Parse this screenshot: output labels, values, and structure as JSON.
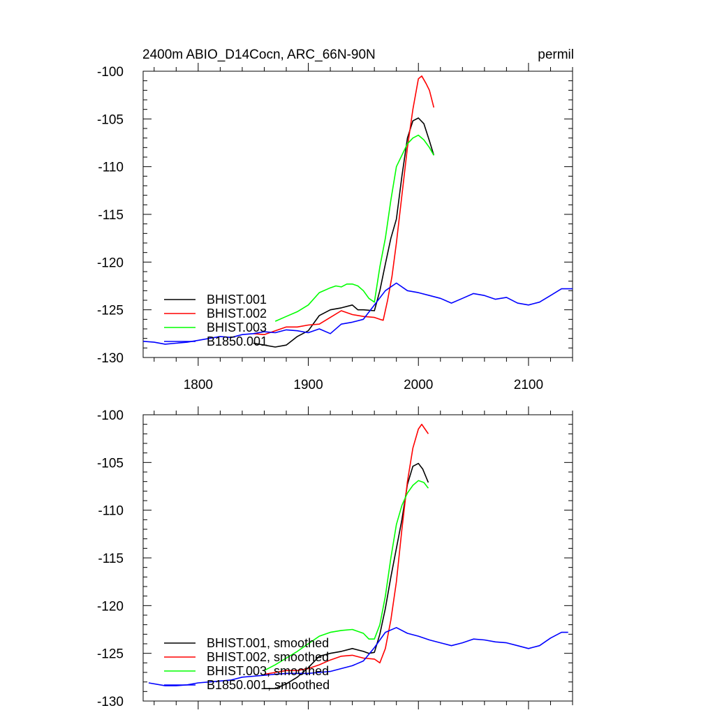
{
  "header": {
    "title": "2400m ABIO_D14Cocn, ARC_66N-90N",
    "units": "permil"
  },
  "colors": {
    "BHIST.001": "#000000",
    "BHIST.002": "#ff0000",
    "BHIST.003": "#00ff00",
    "B1850.001": "#0000ff"
  },
  "chart_data": [
    {
      "type": "line",
      "panel": "top",
      "xlim": [
        1750,
        2140
      ],
      "ylim": [
        -130,
        -100
      ],
      "x_ticks": [
        1800,
        1900,
        2000,
        2100
      ],
      "x_tick_labels": [
        "1800",
        "1900",
        "2000",
        "2100"
      ],
      "y_ticks": [
        -130,
        -125,
        -120,
        -115,
        -110,
        -105,
        -100
      ],
      "y_tick_labels": [
        "-130",
        "-125",
        "-120",
        "-115",
        "-110",
        "-105",
        "-100"
      ],
      "legend_placement": "bottom-left",
      "series": [
        {
          "name": "BHIST.001",
          "color": "#000000",
          "x": [
            1850,
            1860,
            1870,
            1880,
            1890,
            1900,
            1910,
            1920,
            1930,
            1940,
            1945,
            1950,
            1960,
            1965,
            1970,
            1975,
            1980,
            1985,
            1990,
            1995,
            2000,
            2005,
            2010,
            2014
          ],
          "y": [
            -128.5,
            -128.7,
            -128.9,
            -128.7,
            -127.8,
            -127.2,
            -125.6,
            -125.0,
            -124.8,
            -124.5,
            -125.0,
            -125.0,
            -125.1,
            -123.0,
            -120.2,
            -117.5,
            -115.5,
            -111.0,
            -107.0,
            -105.2,
            -104.9,
            -105.5,
            -107.3,
            -108.8
          ]
        },
        {
          "name": "BHIST.002",
          "color": "#ff0000",
          "x": [
            1850,
            1860,
            1870,
            1880,
            1890,
            1900,
            1910,
            1920,
            1930,
            1940,
            1950,
            1960,
            1965,
            1968,
            1972,
            1976,
            1980,
            1985,
            1990,
            1995,
            2000,
            2003,
            2007,
            2010,
            2014
          ],
          "y": [
            -127.5,
            -127.6,
            -127.2,
            -126.8,
            -126.8,
            -126.6,
            -126.5,
            -125.8,
            -125.1,
            -125.5,
            -125.7,
            -125.8,
            -126.0,
            -126.1,
            -124.0,
            -121.5,
            -118.0,
            -113.0,
            -108.0,
            -104.0,
            -100.8,
            -100.5,
            -101.3,
            -102.0,
            -103.8
          ]
        },
        {
          "name": "BHIST.003",
          "color": "#00ff00",
          "x": [
            1870,
            1880,
            1890,
            1900,
            1910,
            1920,
            1925,
            1930,
            1935,
            1940,
            1945,
            1950,
            1955,
            1960,
            1965,
            1970,
            1975,
            1980,
            1985,
            1990,
            1995,
            2000,
            2005,
            2010,
            2014
          ],
          "y": [
            -126.2,
            -125.7,
            -125.2,
            -124.5,
            -123.2,
            -122.7,
            -122.5,
            -122.6,
            -122.3,
            -122.3,
            -122.5,
            -123.0,
            -123.8,
            -124.2,
            -120.5,
            -117.5,
            -113.5,
            -110.0,
            -108.8,
            -107.6,
            -107.0,
            -106.7,
            -107.2,
            -108.0,
            -108.8
          ]
        },
        {
          "name": "B1850.001",
          "color": "#0000ff",
          "x": [
            1750,
            1760,
            1770,
            1780,
            1790,
            1800,
            1810,
            1820,
            1830,
            1840,
            1850,
            1860,
            1870,
            1880,
            1890,
            1900,
            1910,
            1920,
            1930,
            1940,
            1950,
            1960,
            1970,
            1980,
            1990,
            2000,
            2010,
            2020,
            2030,
            2040,
            2050,
            2060,
            2070,
            2080,
            2090,
            2100,
            2110,
            2120,
            2130,
            2140
          ],
          "y": [
            -128.3,
            -128.4,
            -128.6,
            -128.5,
            -128.4,
            -128.2,
            -128.0,
            -127.8,
            -127.9,
            -127.6,
            -127.5,
            -127.3,
            -127.4,
            -127.1,
            -127.2,
            -127.4,
            -127.0,
            -127.5,
            -126.5,
            -126.3,
            -126.0,
            -124.5,
            -123.0,
            -122.2,
            -123.0,
            -123.2,
            -123.5,
            -123.8,
            -124.3,
            -123.8,
            -123.3,
            -123.5,
            -123.9,
            -123.7,
            -124.3,
            -124.5,
            -124.2,
            -123.5,
            -122.8,
            -122.8
          ]
        }
      ]
    },
    {
      "type": "line",
      "panel": "bottom",
      "xlim": [
        1750,
        2140
      ],
      "ylim": [
        -130,
        -100
      ],
      "x_ticks": [
        1800,
        1900,
        2000,
        2100
      ],
      "y_ticks": [
        -130,
        -125,
        -120,
        -115,
        -110,
        -105,
        -100
      ],
      "y_tick_labels": [
        "-130",
        "-125",
        "-120",
        "-115",
        "-110",
        "-105",
        "-100"
      ],
      "legend_placement": "bottom-left",
      "series": [
        {
          "name": "BHIST.001, smoothed",
          "color": "#000000",
          "x": [
            1860,
            1870,
            1880,
            1890,
            1900,
            1910,
            1920,
            1930,
            1940,
            1950,
            1955,
            1960,
            1965,
            1970,
            1975,
            1980,
            1985,
            1990,
            1995,
            2000,
            2004,
            2009
          ],
          "y": [
            -128.7,
            -128.7,
            -128.2,
            -127.5,
            -126.5,
            -125.3,
            -125.0,
            -124.8,
            -124.5,
            -124.8,
            -125.0,
            -124.9,
            -123.0,
            -120.3,
            -117.0,
            -114.0,
            -111.0,
            -107.3,
            -105.4,
            -105.1,
            -105.7,
            -107.1
          ]
        },
        {
          "name": "BHIST.002, smoothed",
          "color": "#ff0000",
          "x": [
            1860,
            1870,
            1880,
            1890,
            1900,
            1910,
            1920,
            1930,
            1940,
            1950,
            1960,
            1965,
            1970,
            1975,
            1980,
            1985,
            1990,
            1995,
            2000,
            2003,
            2006,
            2009
          ],
          "y": [
            -127.2,
            -127.0,
            -126.8,
            -126.8,
            -126.6,
            -126.2,
            -125.7,
            -125.3,
            -125.2,
            -125.5,
            -125.6,
            -126.0,
            -124.5,
            -121.5,
            -117.5,
            -112.0,
            -107.0,
            -103.5,
            -101.5,
            -101.0,
            -101.5,
            -102.0
          ]
        },
        {
          "name": "BHIST.003, smoothed",
          "color": "#00ff00",
          "x": [
            1860,
            1870,
            1880,
            1890,
            1900,
            1910,
            1920,
            1930,
            1940,
            1950,
            1955,
            1960,
            1965,
            1970,
            1975,
            1980,
            1985,
            1990,
            1995,
            2000,
            2005,
            2009
          ],
          "y": [
            -126.8,
            -126.2,
            -125.5,
            -124.8,
            -124.0,
            -123.2,
            -122.8,
            -122.6,
            -122.5,
            -122.9,
            -123.5,
            -123.5,
            -122.0,
            -119.0,
            -115.0,
            -111.5,
            -109.5,
            -108.2,
            -107.4,
            -106.9,
            -107.1,
            -107.7
          ]
        },
        {
          "name": "B1850.001, smoothed",
          "color": "#0000ff",
          "x": [
            1755,
            1770,
            1780,
            1790,
            1800,
            1810,
            1820,
            1830,
            1840,
            1850,
            1860,
            1870,
            1880,
            1890,
            1900,
            1910,
            1920,
            1930,
            1940,
            1950,
            1960,
            1970,
            1980,
            1990,
            2000,
            2010,
            2020,
            2030,
            2040,
            2050,
            2060,
            2070,
            2080,
            2090,
            2100,
            2110,
            2120,
            2130,
            2136
          ],
          "y": [
            -128.1,
            -128.4,
            -128.4,
            -128.3,
            -128.1,
            -128.0,
            -127.9,
            -127.8,
            -127.5,
            -127.4,
            -127.3,
            -127.2,
            -127.1,
            -127.1,
            -127.1,
            -127.0,
            -126.9,
            -126.6,
            -126.3,
            -125.8,
            -124.4,
            -122.8,
            -122.3,
            -122.9,
            -123.2,
            -123.6,
            -123.9,
            -124.2,
            -123.9,
            -123.5,
            -123.6,
            -123.8,
            -123.9,
            -124.2,
            -124.5,
            -124.2,
            -123.4,
            -122.8,
            -122.8
          ]
        }
      ]
    }
  ]
}
